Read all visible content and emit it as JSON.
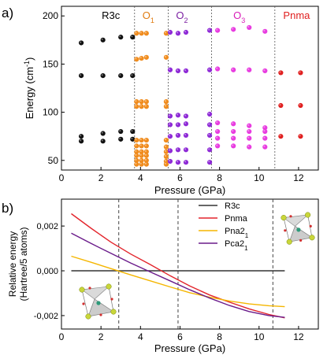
{
  "panels": {
    "a_label": "a)",
    "b_label": "b)"
  },
  "chart_data": [
    {
      "panel": "a)",
      "type": "scatter",
      "xlabel": "Pressure (GPa)",
      "ylabel": "Energy (cm-1)",
      "xlim": [
        0,
        13
      ],
      "ylim": [
        40,
        210
      ],
      "xticks": [
        "0",
        "2",
        "4",
        "6",
        "8",
        "10",
        "12"
      ],
      "yticks": [
        "50",
        "100",
        "150",
        "200"
      ],
      "phase_boundaries": [
        3.7,
        5.4,
        7.6,
        10.8
      ],
      "phase_labels": [
        {
          "text": "R3c",
          "x": 2.5,
          "y": 200,
          "color": "#000000"
        },
        {
          "text": "O",
          "sub": "1",
          "x": 4.4,
          "y": 200,
          "color": "#e07b10"
        },
        {
          "text": "O",
          "sub": "2",
          "x": 6.1,
          "y": 200,
          "color": "#7b1fa2"
        },
        {
          "text": "O",
          "sub": "3",
          "x": 9.0,
          "y": 200,
          "color": "#d81bb8"
        },
        {
          "text": "Pnma",
          "x": 11.9,
          "y": 200,
          "color": "#e02020"
        }
      ],
      "series": [
        {
          "name": "R3c",
          "color": "#111111",
          "x": [
            1.0,
            2.1,
            3.0,
            3.6
          ],
          "y_sets": [
            [
              172,
              175,
              178,
              178
            ],
            [
              138,
              138,
              138,
              138
            ],
            [
              75,
              78,
              80,
              80
            ],
            [
              70,
              70,
              72,
              72
            ]
          ]
        },
        {
          "name": "O1",
          "color": "#f08c1e",
          "x": [
            3.8,
            4.05,
            4.3,
            5.3
          ],
          "y_sets": [
            [
              182,
              182,
              182,
              182
            ],
            [
              155,
              156,
              157,
              157
            ],
            [
              111,
              111,
              111,
              111
            ],
            [
              106,
              106,
              106,
              106
            ],
            [
              71,
              71,
              71,
              71
            ],
            [
              65,
              65,
              65,
              64
            ],
            [
              59,
              59,
              59,
              59
            ],
            [
              55,
              55,
              55,
              54
            ],
            [
              50,
              50,
              50,
              49
            ],
            [
              46,
              46,
              46,
              46
            ]
          ]
        },
        {
          "name": "O2",
          "color": "#8e2ad6",
          "x": [
            5.5,
            5.9,
            6.3,
            7.5
          ],
          "y_sets": [
            [
              183,
              182,
              183,
              185
            ],
            [
              144,
              143,
              143,
              144
            ],
            [
              96,
              97,
              96,
              98
            ],
            [
              87,
              87,
              88,
              87
            ],
            [
              75,
              76,
              76,
              76
            ],
            [
              60,
              61,
              61,
              61
            ],
            [
              49,
              48,
              48,
              48
            ]
          ]
        },
        {
          "name": "O3",
          "color": "#e83ce0",
          "x": [
            7.9,
            8.7,
            9.5,
            10.3
          ],
          "y_sets": [
            [
              185,
              186,
              188,
              184
            ],
            [
              145,
              144,
              144,
              143
            ],
            [
              89,
              88,
              86,
              84
            ],
            [
              80,
              80,
              80,
              80
            ],
            [
              73,
              73,
              73,
              73
            ],
            [
              65,
              65,
              64,
              64
            ]
          ]
        },
        {
          "name": "Pnma",
          "color": "#e02020",
          "x": [
            11.1,
            12.1
          ],
          "y_sets": [
            [
              141,
              141
            ],
            [
              107,
              107
            ],
            [
              75,
              75
            ]
          ]
        }
      ]
    },
    {
      "panel": "b)",
      "type": "line",
      "xlabel": "Pressure (GPa)",
      "ylabel": "Relative energy",
      "ylabel2": "(Hartree/5 atoms)",
      "xlim": [
        0,
        13
      ],
      "ylim": [
        -0.0026,
        0.0032
      ],
      "xticks": [
        "0",
        "2",
        "4",
        "6",
        "8",
        "10",
        "12"
      ],
      "yticks": [
        "0,002",
        "0,000",
        "-0,002"
      ],
      "vlines": [
        2.9,
        5.9,
        10.7
      ],
      "series": [
        {
          "name": "R3c",
          "color": "#333333",
          "x": [
            0.5,
            11.3
          ],
          "y": [
            0.0,
            0.0
          ]
        },
        {
          "name": "Pnma",
          "color": "#e3242b",
          "x": [
            0.5,
            1.5,
            2.5,
            3.5,
            4.5,
            5.5,
            6.5,
            7.5,
            8.5,
            9.5,
            10.5,
            11.3
          ],
          "y": [
            0.00255,
            0.0019,
            0.00128,
            0.00075,
            0.00028,
            -0.00022,
            -0.00068,
            -0.00108,
            -0.0014,
            -0.0017,
            -0.00195,
            -0.0021
          ]
        },
        {
          "name": "Pna2",
          "sub": "1",
          "color": "#f5b600",
          "x": [
            0.5,
            1.5,
            2.5,
            3.5,
            4.5,
            5.5,
            6.5,
            7.5,
            8.5,
            9.5,
            10.5,
            11.3
          ],
          "y": [
            0.00065,
            0.00038,
            0.0001,
            -0.00018,
            -0.00045,
            -0.00072,
            -0.00098,
            -0.00118,
            -0.00135,
            -0.00148,
            -0.00156,
            -0.0016
          ]
        },
        {
          "name": "Pca2",
          "sub": "1",
          "color": "#6a1b8a",
          "x": [
            0.5,
            1.5,
            2.5,
            3.5,
            4.5,
            5.5,
            6.5,
            7.5,
            8.5,
            9.5,
            10.5,
            11.3
          ],
          "y": [
            0.00168,
            0.00122,
            0.00078,
            0.00035,
            -5e-05,
            -0.00045,
            -0.00085,
            -0.00122,
            -0.00155,
            -0.00182,
            -0.002,
            -0.00208
          ]
        }
      ],
      "legend_position": "upper-right"
    }
  ]
}
